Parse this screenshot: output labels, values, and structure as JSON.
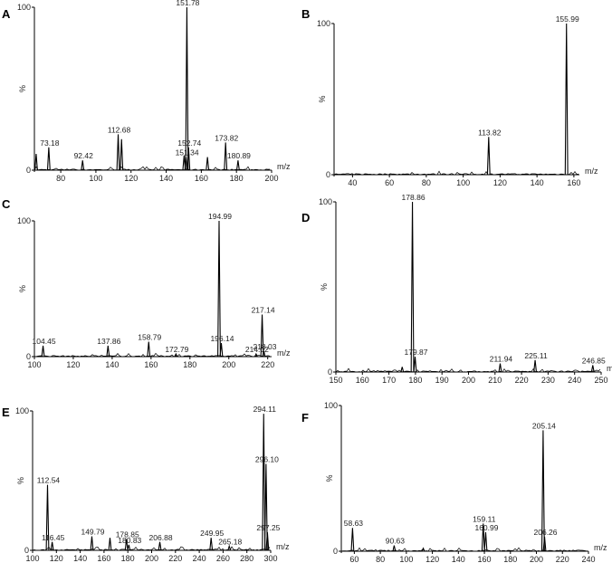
{
  "colors": {
    "trace": "#000000",
    "background": "#ffffff"
  },
  "chart_data": [
    {
      "panel": "A",
      "type": "line",
      "xlim": [
        65,
        200
      ],
      "ylim": [
        0,
        100
      ],
      "xticks": [
        80,
        100,
        120,
        140,
        160,
        180,
        200
      ],
      "y_top_label": "100",
      "y_unit": "%",
      "x_unit": "m/z",
      "peaks": [
        {
          "x": 66,
          "y": 10
        },
        {
          "x": 73.18,
          "y": 14,
          "label": "73.18"
        },
        {
          "x": 92.42,
          "y": 6,
          "label": "92.42"
        },
        {
          "x": 112.68,
          "y": 22,
          "label": "112.68"
        },
        {
          "x": 114.6,
          "y": 19
        },
        {
          "x": 150.2,
          "y": 9
        },
        {
          "x": 151.34,
          "y": 8,
          "label": "151.34"
        },
        {
          "x": 151.78,
          "y": 100,
          "label": "151.78"
        },
        {
          "x": 152.74,
          "y": 14,
          "label": "152.74"
        },
        {
          "x": 163.5,
          "y": 8
        },
        {
          "x": 173.82,
          "y": 17,
          "label": "173.82"
        },
        {
          "x": 180.89,
          "y": 6,
          "label": "180.89"
        }
      ]
    },
    {
      "panel": "B",
      "type": "line",
      "xlim": [
        30,
        163
      ],
      "ylim": [
        0,
        100
      ],
      "xticks": [
        40,
        60,
        80,
        100,
        120,
        140,
        160
      ],
      "y_top_label": "100",
      "y_unit": "%",
      "x_unit": "m/z",
      "peaks": [
        {
          "x": 113.82,
          "y": 25,
          "label": "113.82"
        },
        {
          "x": 155.99,
          "y": 100,
          "label": "155.99"
        }
      ]
    },
    {
      "panel": "C",
      "type": "line",
      "xlim": [
        100,
        222
      ],
      "ylim": [
        0,
        100
      ],
      "xticks": [
        100,
        120,
        140,
        160,
        180,
        200,
        220
      ],
      "y_top_label": "100",
      "y_unit": "%",
      "x_unit": "m/z",
      "peaks": [
        {
          "x": 104.45,
          "y": 8,
          "label": "104.45"
        },
        {
          "x": 137.86,
          "y": 8,
          "label": "137.86"
        },
        {
          "x": 158.79,
          "y": 11,
          "label": "158.79"
        },
        {
          "x": 172.79,
          "y": 2,
          "label": "172.79"
        },
        {
          "x": 194.99,
          "y": 100,
          "label": "194.99"
        },
        {
          "x": 196.14,
          "y": 10,
          "label": "196.14"
        },
        {
          "x": 214.02,
          "y": 2,
          "label": "214.02"
        },
        {
          "x": 217.14,
          "y": 31,
          "label": "217.14"
        },
        {
          "x": 218.03,
          "y": 4,
          "label": "218.03"
        }
      ]
    },
    {
      "panel": "D",
      "type": "line",
      "xlim": [
        150,
        250
      ],
      "ylim": [
        0,
        100
      ],
      "xticks": [
        150,
        160,
        170,
        180,
        190,
        200,
        210,
        220,
        230,
        240,
        250
      ],
      "y_top_label": "100",
      "y_unit": "%",
      "x_unit": "m/z",
      "peaks": [
        {
          "x": 175,
          "y": 3
        },
        {
          "x": 178.86,
          "y": 100,
          "label": "178.86"
        },
        {
          "x": 179.87,
          "y": 9,
          "label": "179.87"
        },
        {
          "x": 211.94,
          "y": 5,
          "label": "211.94"
        },
        {
          "x": 225.11,
          "y": 7,
          "label": "225.11"
        },
        {
          "x": 246.85,
          "y": 4,
          "label": "246.85"
        }
      ]
    },
    {
      "panel": "E",
      "type": "line",
      "xlim": [
        100,
        300
      ],
      "ylim": [
        0,
        100
      ],
      "xticks": [
        100,
        120,
        140,
        160,
        180,
        200,
        220,
        240,
        260,
        280,
        300
      ],
      "y_top_label": "100",
      "y_unit": "%",
      "x_unit": "m/z",
      "peaks": [
        {
          "x": 112.54,
          "y": 47,
          "label": "112.54"
        },
        {
          "x": 116.45,
          "y": 6,
          "label": "116.45"
        },
        {
          "x": 149.79,
          "y": 10,
          "label": "149.79"
        },
        {
          "x": 165,
          "y": 9
        },
        {
          "x": 178.85,
          "y": 8,
          "label": "178.85"
        },
        {
          "x": 180.83,
          "y": 4,
          "label": "180.83"
        },
        {
          "x": 206.88,
          "y": 6,
          "label": "206.88"
        },
        {
          "x": 249.95,
          "y": 9,
          "label": "249.95"
        },
        {
          "x": 265.18,
          "y": 3,
          "label": "265.18"
        },
        {
          "x": 294.11,
          "y": 98,
          "label": "294.11"
        },
        {
          "x": 296.1,
          "y": 62,
          "label": "296.10"
        },
        {
          "x": 297.25,
          "y": 13,
          "label": "297.25"
        }
      ]
    },
    {
      "panel": "F",
      "type": "line",
      "xlim": [
        50,
        240
      ],
      "ylim": [
        0,
        100
      ],
      "xticks": [
        60,
        80,
        100,
        120,
        140,
        160,
        180,
        200,
        220,
        240
      ],
      "y_top_label": "100",
      "y_unit": "%",
      "x_unit": "m/z",
      "peaks": [
        {
          "x": 58.63,
          "y": 16,
          "label": "58.63"
        },
        {
          "x": 90.63,
          "y": 4,
          "label": "90.63"
        },
        {
          "x": 113,
          "y": 2
        },
        {
          "x": 159.11,
          "y": 19,
          "label": "159.11"
        },
        {
          "x": 160.99,
          "y": 13,
          "label": "160.99"
        },
        {
          "x": 205.14,
          "y": 83,
          "label": "205.14"
        },
        {
          "x": 206.26,
          "y": 10,
          "label": "206.26"
        }
      ]
    }
  ]
}
